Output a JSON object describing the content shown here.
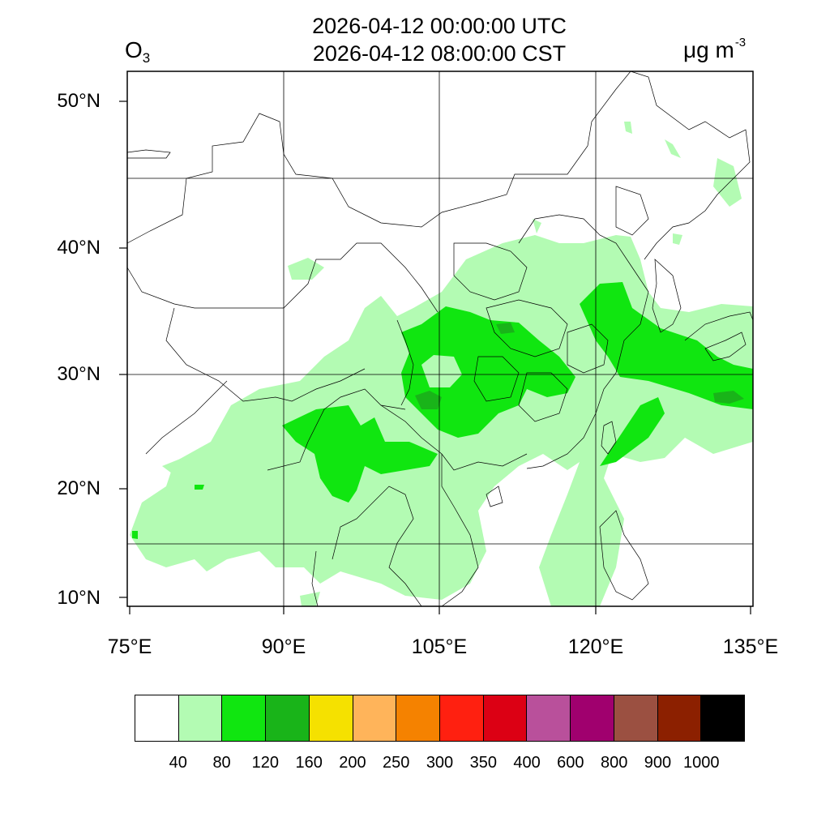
{
  "title_utc": "2026-04-12 00:00:00 UTC",
  "title_cst": "2026-04-12 08:00:00 CST",
  "variable": {
    "main": "O",
    "sub": "3"
  },
  "units": {
    "main": "μg m",
    "sup": "-3"
  },
  "lat_labels": [
    "50°N",
    "40°N",
    "30°N",
    "20°N",
    "10°N"
  ],
  "lon_labels": [
    "75°E",
    "90°E",
    "105°E",
    "120°E",
    "135°E"
  ],
  "colorbar": {
    "colors": [
      "#ffffff",
      "#b3fbb3",
      "#10e610",
      "#19b419",
      "#f5e100",
      "#ffb45a",
      "#f58200",
      "#ff2010",
      "#dc0014",
      "#b9509b",
      "#a0006e",
      "#9b5041",
      "#8c2000",
      "#000000"
    ],
    "ticks": [
      "40",
      "80",
      "120",
      "160",
      "200",
      "250",
      "300",
      "350",
      "400",
      "600",
      "800",
      "900",
      "1000"
    ]
  },
  "map_data": {
    "lon_range": [
      75,
      135
    ],
    "lat_range": [
      9,
      52
    ],
    "field": "O3 surface concentration",
    "levels_present": [
      "40-80",
      "80-120",
      "120-160"
    ]
  }
}
